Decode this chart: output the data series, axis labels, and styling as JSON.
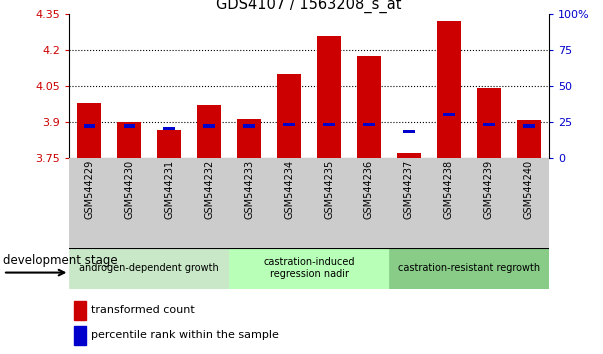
{
  "title": "GDS4107 / 1563208_s_at",
  "samples": [
    "GSM544229",
    "GSM544230",
    "GSM544231",
    "GSM544232",
    "GSM544233",
    "GSM544234",
    "GSM544235",
    "GSM544236",
    "GSM544237",
    "GSM544238",
    "GSM544239",
    "GSM544240"
  ],
  "transformed_count": [
    3.98,
    3.9,
    3.865,
    3.97,
    3.91,
    4.1,
    4.26,
    4.175,
    3.77,
    4.32,
    4.04,
    3.905
  ],
  "percentile_rank": [
    22,
    22,
    20,
    22,
    22,
    23,
    23,
    23,
    18,
    30,
    23,
    22
  ],
  "y_min": 3.75,
  "y_max": 4.35,
  "y_ticks": [
    3.75,
    3.9,
    4.05,
    4.2,
    4.35
  ],
  "y_tick_labels": [
    "3.75",
    "3.9",
    "4.05",
    "4.2",
    "4.35"
  ],
  "y2_tick_percents": [
    0,
    25,
    50,
    75,
    100
  ],
  "y2_tick_labels": [
    "0",
    "25",
    "50",
    "75",
    "100%"
  ],
  "bar_color": "#cc0000",
  "percentile_color": "#0000cc",
  "bar_bottom": 3.75,
  "grid_yticks": [
    3.9,
    4.05,
    4.2
  ],
  "groups": [
    {
      "label": "androgen-dependent growth",
      "start": 0,
      "end": 3
    },
    {
      "label": "castration-induced\nregression nadir",
      "start": 4,
      "end": 7
    },
    {
      "label": "castration-resistant regrowth",
      "start": 8,
      "end": 11
    }
  ],
  "group_colors": [
    "#c8e8c8",
    "#b8ffb8",
    "#88cc88"
  ],
  "legend_items": [
    {
      "label": "transformed count",
      "color": "#cc0000"
    },
    {
      "label": "percentile rank within the sample",
      "color": "#0000cc"
    }
  ],
  "dev_stage_label": "development stage",
  "xtick_bg_color": "#d0d0d0",
  "left_col_color": "#c8c8c8",
  "right_col_color": "#d8d8d8"
}
